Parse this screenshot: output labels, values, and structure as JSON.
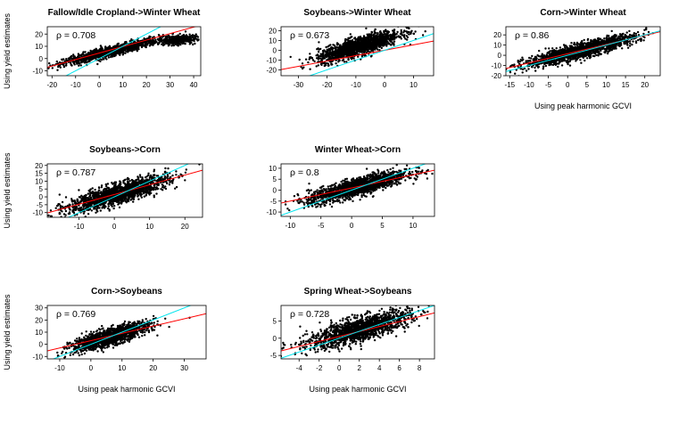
{
  "figure": {
    "shared_ylabel": "Using yield estimates",
    "shared_xlabel": "Using peak harmonic GCVI"
  },
  "colors": {
    "points": "#000000",
    "fit_line": "#ff0000",
    "one_to_one_line": "#00e5ee"
  },
  "chart_data": [
    {
      "type": "scatter",
      "title": "Fallow/Idle Cropland->Winter Wheat",
      "xlabel": "",
      "ylabel": "Using yield estimates",
      "xlim": [
        -22,
        43
      ],
      "ylim": [
        -14,
        26
      ],
      "xticks": [
        -20,
        -10,
        0,
        10,
        20,
        30,
        40
      ],
      "yticks": [
        -10,
        0,
        10,
        20
      ],
      "annotation": "ρ = 0.708",
      "fit_line": {
        "slope": 0.53,
        "intercept": 4.5
      },
      "one_to_one_line": {
        "slope": 1,
        "intercept": 0
      },
      "clusters": [
        {
          "cx": 5,
          "cy": 6,
          "sx": 10,
          "sy": 5,
          "rho": 0.92,
          "n": 1300
        },
        {
          "cx": 33,
          "cy": 15,
          "sx": 4,
          "sy": 2,
          "rho": 0.2,
          "n": 350
        }
      ]
    },
    {
      "type": "scatter",
      "title": "Soybeans->Winter Wheat",
      "xlabel": "",
      "ylabel": "",
      "xlim": [
        -36,
        17
      ],
      "ylim": [
        -26,
        24
      ],
      "xticks": [
        -30,
        -20,
        -10,
        0,
        10
      ],
      "yticks": [
        -20,
        -10,
        0,
        10,
        20
      ],
      "annotation": "ρ = 0.673",
      "fit_line": {
        "slope": 0.55,
        "intercept": 0
      },
      "one_to_one_line": {
        "slope": 1,
        "intercept": 0
      },
      "clusters": [
        {
          "cx": -9,
          "cy": 4,
          "sx": 7,
          "sy": 7.5,
          "rho": 0.8,
          "n": 1600
        }
      ]
    },
    {
      "type": "scatter",
      "title": "Corn->Winter Wheat",
      "xlabel": "Using peak harmonic GCVI",
      "ylabel": "",
      "xlim": [
        -16,
        24
      ],
      "ylim": [
        -20,
        28
      ],
      "xticks": [
        -15,
        -10,
        -5,
        0,
        5,
        10,
        15,
        20
      ],
      "yticks": [
        -20,
        -10,
        0,
        10,
        20
      ],
      "annotation": "ρ = 0.86",
      "fit_line": {
        "slope": 0.9,
        "intercept": 1.5
      },
      "one_to_one_line": {
        "slope": 1,
        "intercept": 0
      },
      "clusters": [
        {
          "cx": 3,
          "cy": 4,
          "sx": 7,
          "sy": 7.5,
          "rho": 0.88,
          "n": 1600
        }
      ]
    },
    {
      "type": "scatter",
      "title": "Soybeans->Corn",
      "xlabel": "",
      "ylabel": "Using yield estimates",
      "xlim": [
        -19,
        25
      ],
      "ylim": [
        -13,
        21
      ],
      "xticks": [
        -10,
        0,
        10,
        20
      ],
      "yticks": [
        -10,
        -5,
        0,
        5,
        10,
        15,
        20
      ],
      "annotation": "ρ = 0.787",
      "fit_line": {
        "slope": 0.62,
        "intercept": 1.5
      },
      "one_to_one_line": {
        "slope": 1,
        "intercept": 0
      },
      "clusters": [
        {
          "cx": 1,
          "cy": 2,
          "sx": 7,
          "sy": 5.5,
          "rho": 0.82,
          "n": 1600
        }
      ]
    },
    {
      "type": "scatter",
      "title": "Winter Wheat->Corn",
      "xlabel": "",
      "ylabel": "",
      "xlim": [
        -11.5,
        13.5
      ],
      "ylim": [
        -12,
        12
      ],
      "xticks": [
        -10,
        -5,
        0,
        5,
        10
      ],
      "yticks": [
        -10,
        -5,
        0,
        5,
        10
      ],
      "annotation": "ρ = 0.8",
      "fit_line": {
        "slope": 0.6,
        "intercept": 1
      },
      "one_to_one_line": {
        "slope": 1,
        "intercept": 0
      },
      "clusters": [
        {
          "cx": 1,
          "cy": 1.5,
          "sx": 4,
          "sy": 3.5,
          "rho": 0.82,
          "n": 1600
        }
      ]
    },
    {
      "type": "scatter",
      "title": "Corn->Soybeans",
      "xlabel": "Using peak harmonic GCVI",
      "ylabel": "Using yield estimates",
      "xlim": [
        -14,
        37
      ],
      "ylim": [
        -12,
        32
      ],
      "xticks": [
        -10,
        0,
        10,
        20,
        30
      ],
      "yticks": [
        -10,
        0,
        10,
        20,
        30
      ],
      "annotation": "ρ = 0.769",
      "fit_line": {
        "slope": 0.6,
        "intercept": 3
      },
      "one_to_one_line": {
        "slope": 1,
        "intercept": 0
      },
      "clusters": [
        {
          "cx": 6,
          "cy": 6,
          "sx": 6,
          "sy": 5.5,
          "rho": 0.8,
          "n": 1500
        }
      ]
    },
    {
      "type": "scatter",
      "title": "Spring Wheat->Soybeans",
      "xlabel": "Using peak harmonic GCVI",
      "ylabel": "",
      "xlim": [
        -5.8,
        9.5
      ],
      "ylim": [
        -6,
        9.5
      ],
      "xticks": [
        -4,
        -2,
        0,
        2,
        4,
        6,
        8
      ],
      "yticks": [
        -5,
        0,
        5
      ],
      "annotation": "ρ = 0.728",
      "fit_line": {
        "slope": 0.72,
        "intercept": 0.5
      },
      "one_to_one_line": {
        "slope": 1,
        "intercept": 0
      },
      "clusters": [
        {
          "cx": 2,
          "cy": 2.5,
          "sx": 2.5,
          "sy": 2.6,
          "rho": 0.75,
          "n": 1600
        }
      ]
    }
  ]
}
